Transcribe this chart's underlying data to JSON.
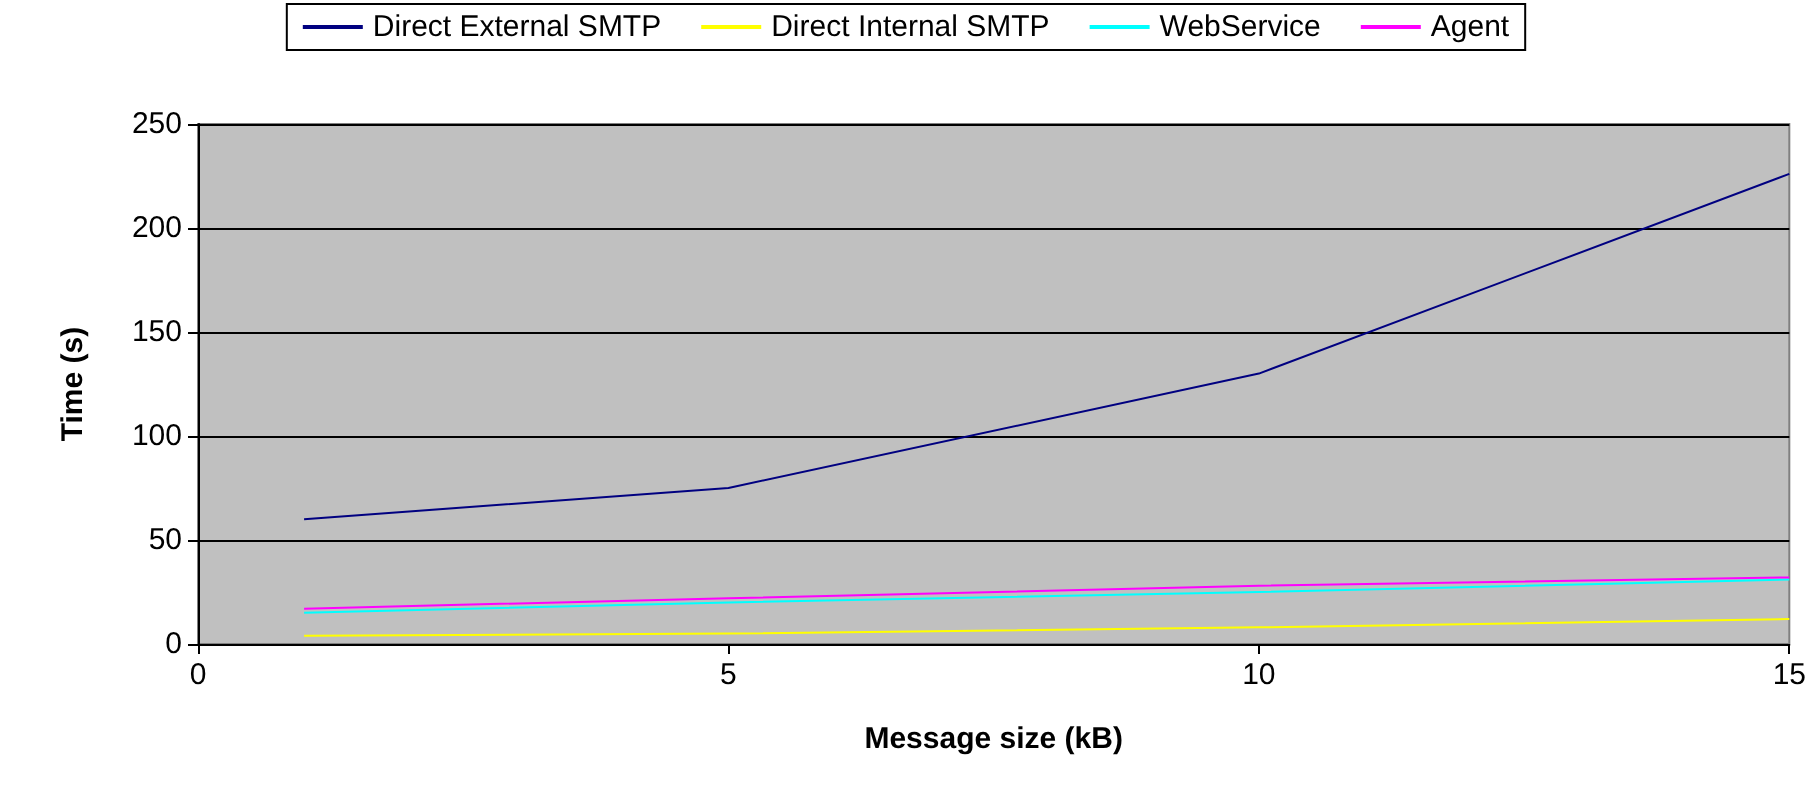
{
  "chart_data": {
    "type": "line",
    "xlabel": "Message size (kB)",
    "ylabel": "Time (s)",
    "x": [
      1,
      5,
      10,
      15
    ],
    "series": [
      {
        "name": "Direct External SMTP",
        "color": "#000080",
        "values": [
          60,
          75,
          130,
          226
        ]
      },
      {
        "name": "Direct Internal SMTP",
        "color": "#ffff00",
        "values": [
          4,
          5,
          8,
          12
        ]
      },
      {
        "name": "WebService",
        "color": "#00ffff",
        "values": [
          15,
          20,
          25,
          31
        ]
      },
      {
        "name": "Agent",
        "color": "#ff00ff",
        "values": [
          17,
          22,
          28,
          32
        ]
      }
    ],
    "xlim": [
      0,
      15
    ],
    "xticks": [
      0,
      5,
      10,
      15
    ],
    "ylim": [
      0,
      250
    ],
    "yticks": [
      0,
      50,
      100,
      150,
      200,
      250
    ],
    "grid": "y",
    "legend": "top",
    "marker": "none",
    "line_style": "solid"
  }
}
